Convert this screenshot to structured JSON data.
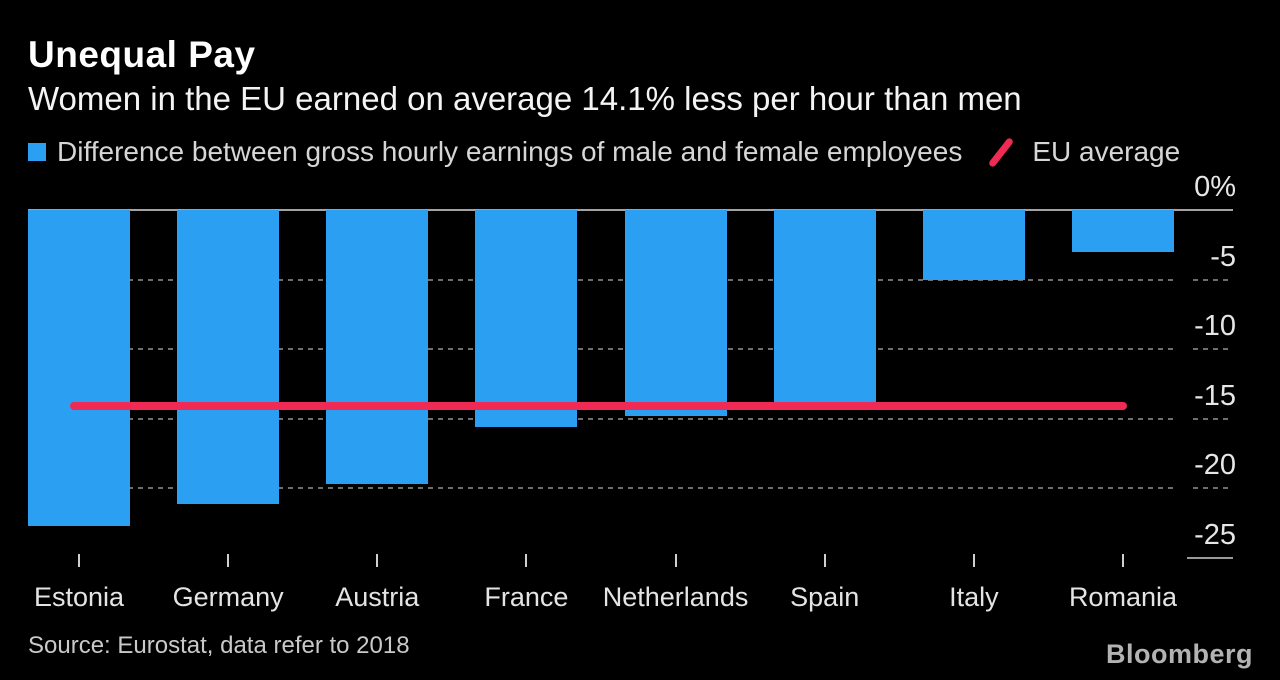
{
  "header": {
    "title": "Unequal Pay",
    "subtitle": "Women in the EU earned on average 14.1% less per hour than men"
  },
  "legend": {
    "series_label": "Difference between gross hourly earnings of male and female employees",
    "average_label": "EU average",
    "series_swatch_color": "#2ba0f2",
    "average_marker_color": "#ee2a55"
  },
  "chart_data": {
    "type": "bar",
    "title": "Unequal Pay",
    "subtitle": "Women in the EU earned on average 14.1% less per hour than men",
    "series_name": "Difference between gross hourly earnings of male and female employees",
    "categories": [
      "Estonia",
      "Germany",
      "Austria",
      "France",
      "Netherlands",
      "Spain",
      "Italy",
      "Romania"
    ],
    "values": [
      -22.7,
      -21.1,
      -19.7,
      -15.6,
      -14.8,
      -14.2,
      -5.0,
      -3.0
    ],
    "unit": "%",
    "ylim": [
      -25,
      0
    ],
    "y_axis": [
      {
        "value": 0,
        "label": "0%"
      },
      {
        "value": -5,
        "label": "-5"
      },
      {
        "value": -10,
        "label": "-10"
      },
      {
        "value": -15,
        "label": "-15"
      },
      {
        "value": -20,
        "label": "-20"
      },
      {
        "value": -25,
        "label": "-25"
      }
    ],
    "average_line": {
      "value": -14.1,
      "label": "EU average"
    },
    "grid": "dashed-horizontal",
    "legend_position": "top",
    "bar_color": "#2ba0f2",
    "average_line_color": "#ee2a55",
    "background_color": "#000000"
  },
  "footer": {
    "source": "Source: Eurostat, data refer to 2018",
    "brand": "Bloomberg"
  }
}
